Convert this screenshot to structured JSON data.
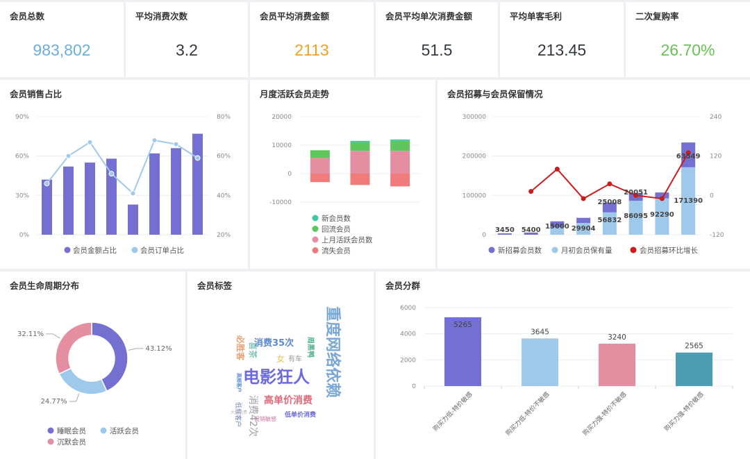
{
  "kpis": [
    {
      "label": "会员总数",
      "value": "983,802",
      "color": "#6aaedc"
    },
    {
      "label": "平均消费次数",
      "value": "3.2",
      "color": "#333840"
    },
    {
      "label": "会员平均消费金额",
      "value": "2113",
      "color": "#f0a020"
    },
    {
      "label": "会员平均单次消费金额",
      "value": "51.5",
      "color": "#333840"
    },
    {
      "label": "平均单客毛利",
      "value": "213.45",
      "color": "#333840"
    },
    {
      "label": "二次复购率",
      "value": "26.70%",
      "color": "#66c255"
    }
  ],
  "panels": {
    "sales_ratio": "会员销售占比",
    "monthly_active": "月度活跃会员走势",
    "recruit": "会员招募与会员保留情况",
    "lifecycle": "会员生命周期分布",
    "tags": "会员标签",
    "segments": "会员分群"
  },
  "colors": {
    "purple": "#7470d2",
    "light_blue": "#9fc9ea",
    "pink": "#e58ea2",
    "teal": "#4a9db2",
    "green": "#5fc55d",
    "salmon": "#f07b7b",
    "mint": "#43c6a6",
    "red": "#cc1b1b"
  },
  "chart_data": [
    {
      "id": "sales_ratio",
      "type": "bar",
      "title": "会员销售占比",
      "left_ticks": [
        "90%",
        "60%",
        "30%",
        "0%"
      ],
      "right_ticks": [
        "80%",
        "60%",
        "40%",
        "20%"
      ],
      "ylim_left": [
        0,
        90
      ],
      "ylim_right": [
        20,
        80
      ],
      "series": [
        {
          "name": "会员金额占比",
          "kind": "bar",
          "axis": "left",
          "values": [
            42,
            52,
            55,
            58,
            23,
            62,
            66,
            77
          ]
        },
        {
          "name": "会员订单占比",
          "kind": "line",
          "axis": "right",
          "values": [
            46,
            60,
            67,
            51,
            41,
            68,
            66,
            59
          ]
        }
      ]
    },
    {
      "id": "monthly_active",
      "type": "bar",
      "stacked": true,
      "title": "月度活跃会员走势",
      "y_ticks": [
        "20000",
        "10000",
        "0",
        "-10000"
      ],
      "ylim": [
        -10000,
        20000
      ],
      "series": [
        {
          "name": "新会员数",
          "values": [
            0,
            500,
            500
          ]
        },
        {
          "name": "回流会员",
          "values": [
            2700,
            3000,
            3500
          ]
        },
        {
          "name": "上月活跃会员数",
          "values": [
            5500,
            8000,
            8000
          ]
        },
        {
          "name": "流失会员",
          "values": [
            -3000,
            -4000,
            -4500
          ]
        }
      ]
    },
    {
      "id": "recruit",
      "type": "bar",
      "stacked": true,
      "title": "会员招募与会员保留情况",
      "left_ticks": [
        "300000",
        "200000",
        "100000",
        "0"
      ],
      "right_ticks": [
        "240",
        "120",
        "0",
        "-120"
      ],
      "ylim_left": [
        0,
        300000
      ],
      "ylim_right": [
        -120,
        240
      ],
      "series": [
        {
          "name": "新招募会员数",
          "kind": "bar",
          "values": [
            3450,
            5400,
            15000,
            13000,
            25000,
            20000,
            15000,
            63000
          ]
        },
        {
          "name": "月初会员保有量",
          "kind": "bar",
          "values": [
            0,
            0,
            19000,
            29904,
            56832,
            86095,
            92290,
            171390
          ]
        },
        {
          "name": "会员招募环比增长",
          "kind": "line",
          "values": [
            null,
            12,
            80,
            -10,
            35,
            0,
            -10,
            130
          ]
        }
      ],
      "data_labels": [
        "3450",
        "5400",
        "15000",
        "29904",
        "56832",
        "25008",
        "86095",
        "20051",
        "92290",
        "171390",
        "63549"
      ]
    },
    {
      "id": "lifecycle",
      "type": "pie",
      "title": "会员生命周期分布",
      "slices": [
        {
          "name": "睡眠会员",
          "value": 43.12,
          "label": "43.12%"
        },
        {
          "name": "活跃会员",
          "value": 24.77,
          "label": "24.77%"
        },
        {
          "name": "沉默会员",
          "value": 32.11,
          "label": "32.11%"
        }
      ]
    },
    {
      "id": "segments",
      "type": "bar",
      "title": "会员分群",
      "y_ticks": [
        "6000",
        "4000",
        "2000",
        "0"
      ],
      "ylim": [
        0,
        6000
      ],
      "categories": [
        "购买力低-特价敏感",
        "购买力低-特价不敏感",
        "购买力强-特价不敏感",
        "购买力强-特价敏感"
      ],
      "values": [
        5265,
        3645,
        3240,
        2565
      ],
      "labels": [
        "5265",
        "3645",
        "3240",
        "2565"
      ]
    }
  ],
  "tag_cloud": [
    {
      "text": "重度网络依赖",
      "color": "#7aa7d6"
    },
    {
      "text": "电影狂人",
      "color": "#6d6ae0"
    },
    {
      "text": "消费35次",
      "color": "#5b89d6"
    },
    {
      "text": "高单价消费",
      "color": "#e06a7a"
    },
    {
      "text": "消费42次",
      "color": "#9aa0a8"
    },
    {
      "text": "必胜客",
      "color": "#e8a070"
    },
    {
      "text": "喜茶",
      "color": "#4aa8a0"
    },
    {
      "text": "女",
      "color": "#e8c050"
    },
    {
      "text": "有车",
      "color": "#9a9a9a"
    },
    {
      "text": "周黑鸭",
      "color": "#50b090"
    },
    {
      "text": "低单价消费",
      "color": "#6d6ae0"
    },
    {
      "text": "促销敏感",
      "color": "#d070a0"
    },
    {
      "text": "高频客户",
      "color": "#5b89d6"
    },
    {
      "text": "低频客户",
      "color": "#6a7fb0"
    },
    {
      "text": "大额消费",
      "color": "#bbbbbb"
    }
  ]
}
